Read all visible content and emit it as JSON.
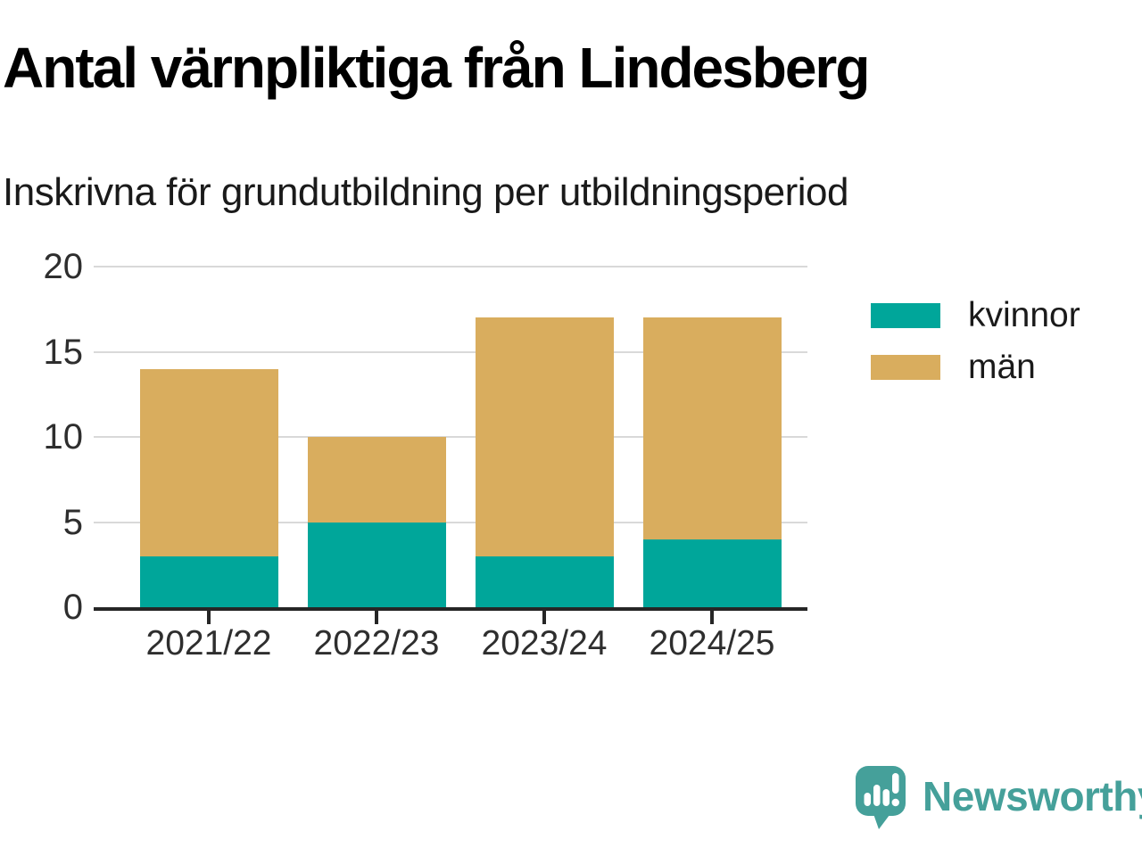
{
  "chart_data": {
    "type": "bar",
    "stacked": true,
    "title": "Antal värnpliktiga från Lindesberg",
    "subtitle": "Inskrivna för grundutbildning per utbildningsperiod",
    "categories": [
      "2021/22",
      "2022/23",
      "2023/24",
      "2024/25"
    ],
    "series": [
      {
        "name": "kvinnor",
        "color": "#00a69a",
        "values": [
          3,
          5,
          3,
          4
        ]
      },
      {
        "name": "män",
        "color": "#d9ad5e",
        "values": [
          11,
          5,
          14,
          13
        ]
      }
    ],
    "stack_totals": [
      14,
      10,
      17,
      17
    ],
    "xlabel": "",
    "ylabel": "",
    "ylim": [
      0,
      20
    ],
    "yticks": [
      0,
      5,
      10,
      15,
      20
    ],
    "grid": "horizontal-only",
    "gridline_color": "#d9d9d9",
    "axis_color": "#262626",
    "legend_position": "right"
  },
  "brand": {
    "name": "Newsworthy",
    "color": "#45a09a",
    "icon": "speech-bubble-with-bar-chart-and-exclamation"
  }
}
